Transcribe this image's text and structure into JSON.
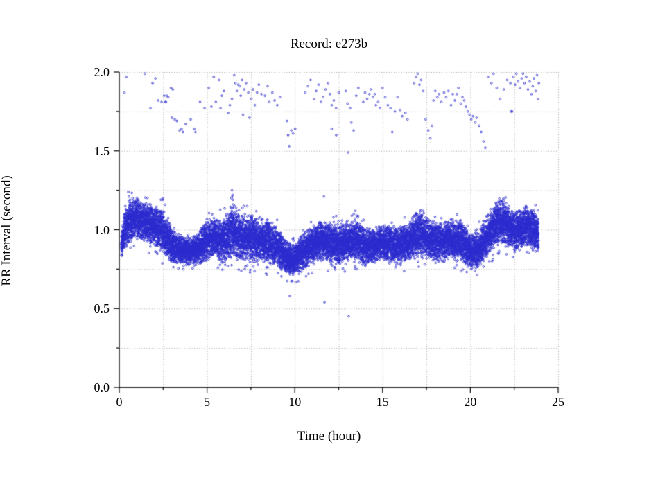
{
  "window": {
    "background": "#ffffff"
  },
  "chart_data": {
    "type": "scatter",
    "title": "Record:  e273b",
    "xlabel": "Time (hour)",
    "ylabel": "RR Interval (second)",
    "xlim": [
      0,
      25
    ],
    "ylim": [
      0.0,
      2.0
    ],
    "x_major_ticks": [
      0,
      5,
      10,
      15,
      20,
      25
    ],
    "x_tick_labels": [
      "0",
      "5",
      "10",
      "15",
      "20",
      "25"
    ],
    "x_minor_tick_step": 2.5,
    "y_major_ticks": [
      0,
      0.5,
      1.0,
      1.5,
      2.0
    ],
    "y_tick_labels": [
      "0.0",
      "0.5",
      "1.0",
      "1.5",
      "2.0"
    ],
    "y_minor_tick_step": 0.25,
    "grid": {
      "show": true,
      "style": "dotted",
      "color": "#9e9e9e",
      "x_step": 2.5,
      "y_step": 0.25
    },
    "axis_color": "#000000",
    "marker": {
      "shape": "open-circle",
      "color": "#2a2ace",
      "radius_px": 1.3
    },
    "legend": null,
    "series": [
      {
        "name": "rr-dense-band",
        "kind": "band",
        "seed": 1337,
        "points_per_hour": 620,
        "t_start": 0.12,
        "t_end": 23.88,
        "envelope": [
          [
            0.12,
            0.91,
            0.07
          ],
          [
            0.35,
            1.0,
            0.09
          ],
          [
            0.6,
            1.06,
            0.1
          ],
          [
            0.9,
            1.08,
            0.09
          ],
          [
            1.3,
            1.06,
            0.09
          ],
          [
            1.7,
            1.04,
            0.09
          ],
          [
            2.1,
            1.02,
            0.09
          ],
          [
            2.5,
            0.99,
            0.1
          ],
          [
            2.8,
            0.94,
            0.09
          ],
          [
            3.1,
            0.89,
            0.07
          ],
          [
            3.6,
            0.87,
            0.06
          ],
          [
            4.1,
            0.86,
            0.06
          ],
          [
            4.6,
            0.89,
            0.08
          ],
          [
            5.0,
            0.94,
            0.09
          ],
          [
            5.5,
            0.95,
            0.09
          ],
          [
            6.0,
            0.93,
            0.1
          ],
          [
            6.45,
            0.99,
            0.12
          ],
          [
            6.9,
            0.95,
            0.1
          ],
          [
            7.4,
            0.95,
            0.1
          ],
          [
            7.9,
            0.94,
            0.1
          ],
          [
            8.5,
            0.92,
            0.1
          ],
          [
            9.1,
            0.88,
            0.09
          ],
          [
            9.6,
            0.82,
            0.07
          ],
          [
            10.0,
            0.81,
            0.07
          ],
          [
            10.4,
            0.85,
            0.08
          ],
          [
            10.9,
            0.9,
            0.09
          ],
          [
            11.4,
            0.93,
            0.09
          ],
          [
            11.9,
            0.92,
            0.09
          ],
          [
            12.4,
            0.9,
            0.09
          ],
          [
            12.9,
            0.92,
            0.09
          ],
          [
            13.4,
            0.93,
            0.09
          ],
          [
            13.9,
            0.9,
            0.09
          ],
          [
            14.4,
            0.89,
            0.08
          ],
          [
            14.9,
            0.92,
            0.08
          ],
          [
            15.4,
            0.91,
            0.08
          ],
          [
            15.9,
            0.9,
            0.08
          ],
          [
            16.4,
            0.92,
            0.09
          ],
          [
            16.8,
            0.96,
            0.1
          ],
          [
            17.2,
            0.97,
            0.1
          ],
          [
            17.6,
            0.94,
            0.09
          ],
          [
            18.0,
            0.92,
            0.09
          ],
          [
            18.5,
            0.93,
            0.09
          ],
          [
            19.0,
            0.94,
            0.09
          ],
          [
            19.5,
            0.92,
            0.09
          ],
          [
            20.0,
            0.86,
            0.08
          ],
          [
            20.4,
            0.87,
            0.08
          ],
          [
            20.8,
            0.92,
            0.09
          ],
          [
            21.2,
            1.0,
            0.1
          ],
          [
            21.6,
            1.05,
            0.1
          ],
          [
            22.0,
            1.04,
            0.1
          ],
          [
            22.4,
            0.99,
            0.09
          ],
          [
            22.8,
            1.0,
            0.09
          ],
          [
            23.2,
            1.02,
            0.09
          ],
          [
            23.6,
            1.0,
            0.09
          ],
          [
            23.88,
            0.97,
            0.08
          ]
        ]
      },
      {
        "name": "rr-upper-outliers",
        "kind": "points",
        "points": [
          [
            0.3,
            1.87
          ],
          [
            0.4,
            1.97
          ],
          [
            1.45,
            1.99
          ],
          [
            1.78,
            1.77
          ],
          [
            1.9,
            1.93
          ],
          [
            2.06,
            1.96
          ],
          [
            2.22,
            1.82
          ],
          [
            2.41,
            1.81
          ],
          [
            2.56,
            1.85
          ],
          [
            2.62,
            1.81
          ],
          [
            2.66,
            1.81
          ],
          [
            2.7,
            1.85
          ],
          [
            2.79,
            1.84
          ],
          [
            2.95,
            1.9
          ],
          [
            3.05,
            1.89
          ],
          [
            3.0,
            1.71
          ],
          [
            3.16,
            1.7
          ],
          [
            3.28,
            1.69
          ],
          [
            3.44,
            1.63
          ],
          [
            3.55,
            1.64
          ],
          [
            3.63,
            1.62
          ],
          [
            3.79,
            1.67
          ],
          [
            4.07,
            1.7
          ],
          [
            4.27,
            1.64
          ],
          [
            4.34,
            1.62
          ],
          [
            4.6,
            1.81
          ],
          [
            4.86,
            1.77
          ],
          [
            5.1,
            1.9
          ],
          [
            5.25,
            1.78
          ],
          [
            5.38,
            1.97
          ],
          [
            5.5,
            1.81
          ],
          [
            5.7,
            1.95
          ],
          [
            5.77,
            1.77
          ],
          [
            5.85,
            1.85
          ],
          [
            5.96,
            1.88
          ],
          [
            6.2,
            1.74
          ],
          [
            6.3,
            1.79
          ],
          [
            6.42,
            1.83
          ],
          [
            6.55,
            1.98
          ],
          [
            6.62,
            1.93
          ],
          [
            6.7,
            1.88
          ],
          [
            6.78,
            1.92
          ],
          [
            6.85,
            1.91
          ],
          [
            6.92,
            1.85
          ],
          [
            7.0,
            1.95
          ],
          [
            7.05,
            1.73
          ],
          [
            7.12,
            1.89
          ],
          [
            7.22,
            1.93
          ],
          [
            7.35,
            1.87
          ],
          [
            7.42,
            1.71
          ],
          [
            7.52,
            1.83
          ],
          [
            7.62,
            1.89
          ],
          [
            7.72,
            1.79
          ],
          [
            7.85,
            1.87
          ],
          [
            7.95,
            1.92
          ],
          [
            8.1,
            1.86
          ],
          [
            8.3,
            1.85
          ],
          [
            8.45,
            1.91
          ],
          [
            8.55,
            1.81
          ],
          [
            8.72,
            1.87
          ],
          [
            8.85,
            1.82
          ],
          [
            9.0,
            1.79
          ],
          [
            9.15,
            1.84
          ],
          [
            9.55,
            1.69
          ],
          [
            9.62,
            1.6
          ],
          [
            9.68,
            1.53
          ],
          [
            9.8,
            1.63
          ],
          [
            9.9,
            1.61
          ],
          [
            10.02,
            1.64
          ],
          [
            10.6,
            1.87
          ],
          [
            10.75,
            1.91
          ],
          [
            10.9,
            1.95
          ],
          [
            11.1,
            1.83
          ],
          [
            11.22,
            1.88
          ],
          [
            11.35,
            1.92
          ],
          [
            11.5,
            1.81
          ],
          [
            11.62,
            1.84
          ],
          [
            11.75,
            1.89
          ],
          [
            11.9,
            1.93
          ],
          [
            12.0,
            1.86
          ],
          [
            12.1,
            1.79
          ],
          [
            12.22,
            1.82
          ],
          [
            12.35,
            1.77
          ],
          [
            12.1,
            1.64
          ],
          [
            12.36,
            1.6
          ],
          [
            12.5,
            1.87
          ],
          [
            12.9,
            1.88
          ],
          [
            13.0,
            1.8
          ],
          [
            13.05,
            1.49
          ],
          [
            13.15,
            1.77
          ],
          [
            13.22,
            1.68
          ],
          [
            13.35,
            1.63
          ],
          [
            13.5,
            1.85
          ],
          [
            13.62,
            1.9
          ],
          [
            13.9,
            1.81
          ],
          [
            14.0,
            1.87
          ],
          [
            14.12,
            1.83
          ],
          [
            14.25,
            1.86
          ],
          [
            14.32,
            1.89
          ],
          [
            14.45,
            1.84
          ],
          [
            14.55,
            1.86
          ],
          [
            14.62,
            1.79
          ],
          [
            14.75,
            1.81
          ],
          [
            14.85,
            1.77
          ],
          [
            15.0,
            1.9
          ],
          [
            15.15,
            1.84
          ],
          [
            15.3,
            1.79
          ],
          [
            15.45,
            1.77
          ],
          [
            15.55,
            1.62
          ],
          [
            15.7,
            1.75
          ],
          [
            15.85,
            1.84
          ],
          [
            16.0,
            1.76
          ],
          [
            16.12,
            1.72
          ],
          [
            16.3,
            1.74
          ],
          [
            16.42,
            1.7
          ],
          [
            16.8,
            1.93
          ],
          [
            16.9,
            1.97
          ],
          [
            17.0,
            1.99
          ],
          [
            17.1,
            1.92
          ],
          [
            17.2,
            1.95
          ],
          [
            17.32,
            1.88
          ],
          [
            17.45,
            1.7
          ],
          [
            17.6,
            1.63
          ],
          [
            17.72,
            1.58
          ],
          [
            17.82,
            1.66
          ],
          [
            17.9,
            1.82
          ],
          [
            18.0,
            1.88
          ],
          [
            18.12,
            1.84
          ],
          [
            18.22,
            1.86
          ],
          [
            18.35,
            1.81
          ],
          [
            18.5,
            1.87
          ],
          [
            18.62,
            1.84
          ],
          [
            18.75,
            1.88
          ],
          [
            18.9,
            1.79
          ],
          [
            19.0,
            1.86
          ],
          [
            19.12,
            1.82
          ],
          [
            19.22,
            1.86
          ],
          [
            19.32,
            1.9
          ],
          [
            19.45,
            1.8
          ],
          [
            19.55,
            1.84
          ],
          [
            19.65,
            1.82
          ],
          [
            19.75,
            1.78
          ],
          [
            19.85,
            1.75
          ],
          [
            19.95,
            1.73
          ],
          [
            20.05,
            1.7
          ],
          [
            20.15,
            1.72
          ],
          [
            20.28,
            1.68
          ],
          [
            20.35,
            1.71
          ],
          [
            20.5,
            1.66
          ],
          [
            20.62,
            1.62
          ],
          [
            20.75,
            1.56
          ],
          [
            20.85,
            1.52
          ],
          [
            21.0,
            1.97
          ],
          [
            21.2,
            1.93
          ],
          [
            21.32,
            1.99
          ],
          [
            21.5,
            1.9
          ],
          [
            21.7,
            1.83
          ],
          [
            21.9,
            1.89
          ],
          [
            22.1,
            1.95
          ],
          [
            22.28,
            1.93
          ],
          [
            22.32,
            1.75
          ],
          [
            22.38,
            1.75
          ],
          [
            22.45,
            1.97
          ],
          [
            22.55,
            1.92
          ],
          [
            22.62,
            1.99
          ],
          [
            22.72,
            1.94
          ],
          [
            22.82,
            1.9
          ],
          [
            22.92,
            1.96
          ],
          [
            23.0,
            1.99
          ],
          [
            23.08,
            1.93
          ],
          [
            23.18,
            1.97
          ],
          [
            23.28,
            1.89
          ],
          [
            23.38,
            1.94
          ],
          [
            23.48,
            1.86
          ],
          [
            23.55,
            1.91
          ],
          [
            23.62,
            1.96
          ],
          [
            23.72,
            1.88
          ],
          [
            23.8,
            1.98
          ],
          [
            23.85,
            1.83
          ],
          [
            23.9,
            1.93
          ]
        ]
      },
      {
        "name": "rr-mid-outliers",
        "kind": "points",
        "points": [
          [
            0.55,
            1.21
          ],
          [
            0.62,
            1.19
          ],
          [
            6.42,
            1.25
          ],
          [
            6.45,
            1.22
          ],
          [
            6.47,
            1.19
          ],
          [
            6.5,
            1.16
          ],
          [
            11.66,
            1.21
          ],
          [
            13.45,
            1.12
          ],
          [
            13.52,
            1.09
          ],
          [
            16.92,
            1.1
          ],
          [
            21.45,
            1.17
          ]
        ]
      },
      {
        "name": "rr-low-outliers",
        "kind": "points",
        "points": [
          [
            6.95,
            0.74
          ],
          [
            7.15,
            0.75
          ],
          [
            7.45,
            0.73
          ],
          [
            9.6,
            0.75
          ],
          [
            9.72,
            0.58
          ],
          [
            9.92,
            0.74
          ],
          [
            10.78,
            0.72
          ],
          [
            11.69,
            0.54
          ],
          [
            13.07,
            0.45
          ],
          [
            17.4,
            0.78
          ],
          [
            18.02,
            0.79
          ],
          [
            21.08,
            0.8
          ]
        ]
      }
    ]
  }
}
